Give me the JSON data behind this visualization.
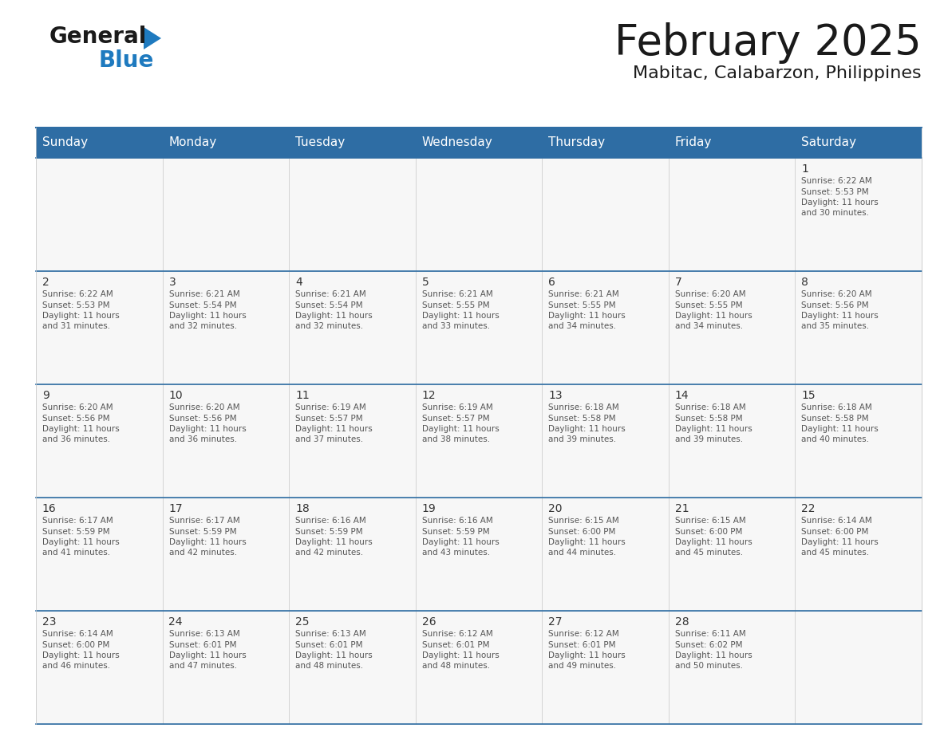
{
  "title": "February 2025",
  "subtitle": "Mabitac, Calabarzon, Philippines",
  "header_color": "#2E6DA4",
  "header_text_color": "#FFFFFF",
  "days_of_week": [
    "Sunday",
    "Monday",
    "Tuesday",
    "Wednesday",
    "Thursday",
    "Friday",
    "Saturday"
  ],
  "calendar": [
    [
      null,
      null,
      null,
      null,
      null,
      null,
      {
        "day": 1,
        "sunrise": "6:22 AM",
        "sunset": "5:53 PM",
        "daylight": "11 hours and 30 minutes."
      }
    ],
    [
      {
        "day": 2,
        "sunrise": "6:22 AM",
        "sunset": "5:53 PM",
        "daylight": "11 hours and 31 minutes."
      },
      {
        "day": 3,
        "sunrise": "6:21 AM",
        "sunset": "5:54 PM",
        "daylight": "11 hours and 32 minutes."
      },
      {
        "day": 4,
        "sunrise": "6:21 AM",
        "sunset": "5:54 PM",
        "daylight": "11 hours and 32 minutes."
      },
      {
        "day": 5,
        "sunrise": "6:21 AM",
        "sunset": "5:55 PM",
        "daylight": "11 hours and 33 minutes."
      },
      {
        "day": 6,
        "sunrise": "6:21 AM",
        "sunset": "5:55 PM",
        "daylight": "11 hours and 34 minutes."
      },
      {
        "day": 7,
        "sunrise": "6:20 AM",
        "sunset": "5:55 PM",
        "daylight": "11 hours and 34 minutes."
      },
      {
        "day": 8,
        "sunrise": "6:20 AM",
        "sunset": "5:56 PM",
        "daylight": "11 hours and 35 minutes."
      }
    ],
    [
      {
        "day": 9,
        "sunrise": "6:20 AM",
        "sunset": "5:56 PM",
        "daylight": "11 hours and 36 minutes."
      },
      {
        "day": 10,
        "sunrise": "6:20 AM",
        "sunset": "5:56 PM",
        "daylight": "11 hours and 36 minutes."
      },
      {
        "day": 11,
        "sunrise": "6:19 AM",
        "sunset": "5:57 PM",
        "daylight": "11 hours and 37 minutes."
      },
      {
        "day": 12,
        "sunrise": "6:19 AM",
        "sunset": "5:57 PM",
        "daylight": "11 hours and 38 minutes."
      },
      {
        "day": 13,
        "sunrise": "6:18 AM",
        "sunset": "5:58 PM",
        "daylight": "11 hours and 39 minutes."
      },
      {
        "day": 14,
        "sunrise": "6:18 AM",
        "sunset": "5:58 PM",
        "daylight": "11 hours and 39 minutes."
      },
      {
        "day": 15,
        "sunrise": "6:18 AM",
        "sunset": "5:58 PM",
        "daylight": "11 hours and 40 minutes."
      }
    ],
    [
      {
        "day": 16,
        "sunrise": "6:17 AM",
        "sunset": "5:59 PM",
        "daylight": "11 hours and 41 minutes."
      },
      {
        "day": 17,
        "sunrise": "6:17 AM",
        "sunset": "5:59 PM",
        "daylight": "11 hours and 42 minutes."
      },
      {
        "day": 18,
        "sunrise": "6:16 AM",
        "sunset": "5:59 PM",
        "daylight": "11 hours and 42 minutes."
      },
      {
        "day": 19,
        "sunrise": "6:16 AM",
        "sunset": "5:59 PM",
        "daylight": "11 hours and 43 minutes."
      },
      {
        "day": 20,
        "sunrise": "6:15 AM",
        "sunset": "6:00 PM",
        "daylight": "11 hours and 44 minutes."
      },
      {
        "day": 21,
        "sunrise": "6:15 AM",
        "sunset": "6:00 PM",
        "daylight": "11 hours and 45 minutes."
      },
      {
        "day": 22,
        "sunrise": "6:14 AM",
        "sunset": "6:00 PM",
        "daylight": "11 hours and 45 minutes."
      }
    ],
    [
      {
        "day": 23,
        "sunrise": "6:14 AM",
        "sunset": "6:00 PM",
        "daylight": "11 hours and 46 minutes."
      },
      {
        "day": 24,
        "sunrise": "6:13 AM",
        "sunset": "6:01 PM",
        "daylight": "11 hours and 47 minutes."
      },
      {
        "day": 25,
        "sunrise": "6:13 AM",
        "sunset": "6:01 PM",
        "daylight": "11 hours and 48 minutes."
      },
      {
        "day": 26,
        "sunrise": "6:12 AM",
        "sunset": "6:01 PM",
        "daylight": "11 hours and 48 minutes."
      },
      {
        "day": 27,
        "sunrise": "6:12 AM",
        "sunset": "6:01 PM",
        "daylight": "11 hours and 49 minutes."
      },
      {
        "day": 28,
        "sunrise": "6:11 AM",
        "sunset": "6:02 PM",
        "daylight": "11 hours and 50 minutes."
      },
      null
    ]
  ],
  "logo_color_general": "#1a1a1a",
  "logo_color_blue": "#1e7abf",
  "logo_triangle_color": "#1e7abf",
  "title_fontsize": 38,
  "subtitle_fontsize": 16,
  "header_fontsize": 11,
  "day_number_fontsize": 10,
  "cell_text_fontsize": 7.5
}
